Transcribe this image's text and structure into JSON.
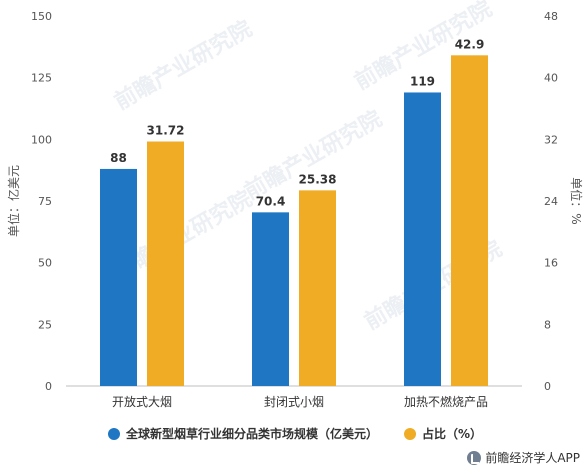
{
  "chart_data": {
    "type": "bar",
    "categories": [
      "开放式大烟",
      "封闭式小烟",
      "加热不燃烧产品"
    ],
    "series": [
      {
        "name": "全球新型烟草行业细分品类市场规模（亿美元）",
        "values": [
          88,
          70.4,
          119
        ],
        "labels": [
          "88",
          "70.4",
          "119"
        ],
        "axis": "left",
        "color": "#1f77c4"
      },
      {
        "name": "占比（%）",
        "values": [
          31.72,
          25.38,
          42.9
        ],
        "labels": [
          "31.72",
          "25.38",
          "42.9"
        ],
        "axis": "right",
        "color": "#f0ac24"
      }
    ],
    "ylabel": "单位：亿美元",
    "y2label": "单位：%",
    "ylim": [
      0,
      150
    ],
    "y2lim": [
      0,
      48
    ],
    "yticks": [
      "0",
      "25",
      "50",
      "75",
      "100",
      "125",
      "150"
    ],
    "y2ticks": [
      "0",
      "8",
      "16",
      "24",
      "32",
      "40",
      "48"
    ],
    "grid": false,
    "legend_position": "bottom"
  },
  "watermark": "前瞻产业研究院",
  "source": "前瞻经济学人APP"
}
